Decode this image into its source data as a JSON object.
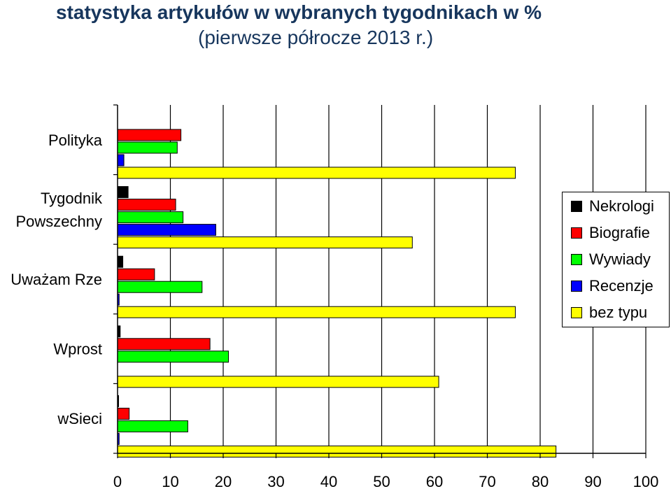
{
  "title_line1": "statystyka artykułów w wybranych tygodnikach w %",
  "title_line2": "(pierwsze półrocze 2013 r.)",
  "chart_data": {
    "type": "bar",
    "orientation": "horizontal",
    "title": "statystyka artykułów w wybranych tygodnikach w % (pierwsze półrocze 2013 r.)",
    "categories": [
      "Polityka",
      "Tygodnik Powszechny",
      "Uważam Rze",
      "Wprost",
      "wSieci"
    ],
    "category_label_lines": [
      [
        "Polityka"
      ],
      [
        "Tygodnik",
        "Powszechny"
      ],
      [
        "Uważam Rze"
      ],
      [
        "Wprost"
      ],
      [
        "wSieci"
      ]
    ],
    "xlim": [
      0,
      100
    ],
    "xticks": [
      0,
      10,
      20,
      30,
      40,
      50,
      60,
      70,
      80,
      90,
      100
    ],
    "grid": "vertical",
    "legend_position": "right",
    "series": [
      {
        "name": "Nekrologi",
        "color": "#000000",
        "values": [
          0,
          2,
          1,
          0.5,
          0.2
        ]
      },
      {
        "name": "Biografie",
        "color": "#ff0000",
        "values": [
          12,
          11,
          7,
          17.5,
          2.2
        ]
      },
      {
        "name": "Wywiady",
        "color": "#00ff00",
        "values": [
          11.3,
          12.4,
          16,
          21,
          13.3
        ]
      },
      {
        "name": "Recenzje",
        "color": "#0000ff",
        "values": [
          1.2,
          18.6,
          0.3,
          0,
          0.3
        ]
      },
      {
        "name": "bez typu",
        "color": "#ffff00",
        "values": [
          75.3,
          55.8,
          75.3,
          60.8,
          83
        ]
      }
    ]
  }
}
